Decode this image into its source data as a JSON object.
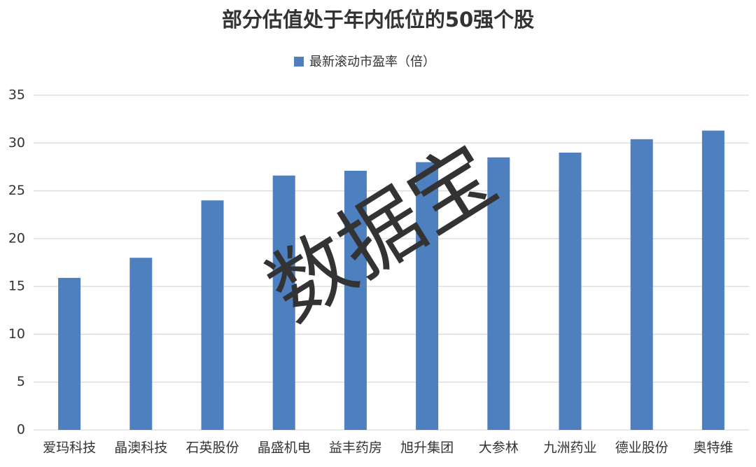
{
  "chart_data": {
    "type": "bar",
    "title": "部分估值处于年内低位的50强个股",
    "categories": [
      "爱玛科技",
      "晶澳科技",
      "石英股份",
      "晶盛机电",
      "益丰药房",
      "旭升集团",
      "大参林",
      "九洲药业",
      "德业股份",
      "奥特维"
    ],
    "series": [
      {
        "name": "最新滚动市盈率（倍）",
        "color": "#4e7fbe",
        "values": [
          15.9,
          18.0,
          24.0,
          26.6,
          27.1,
          28.0,
          28.5,
          29.0,
          30.4,
          31.3
        ]
      }
    ],
    "ylim": [
      0,
      35
    ],
    "yticks": [
      0,
      5,
      10,
      15,
      20,
      25,
      30,
      35
    ],
    "grid": true,
    "legend": "top",
    "watermark": "数据宝"
  }
}
